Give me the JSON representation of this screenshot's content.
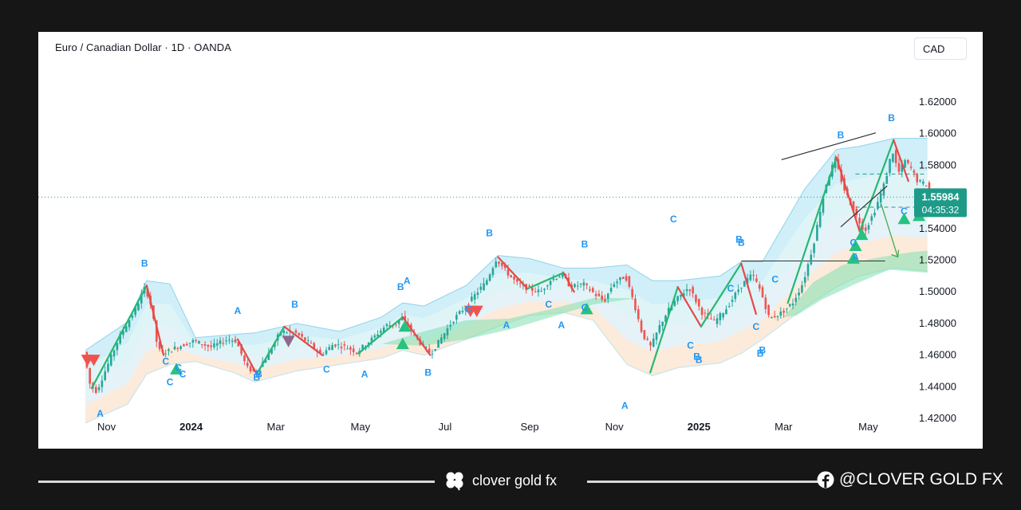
{
  "header": {
    "title": "Euro / Canadian Dollar · 1D · OANDA",
    "currency_button": "CAD"
  },
  "price_label": {
    "price": "1.55984",
    "countdown": "04:35:32"
  },
  "footer": {
    "brand": "clover gold fx",
    "social": "@CLOVER GOLD FX"
  },
  "colors": {
    "up": "#26a69a",
    "down": "#ef5350",
    "pattern_label": "#2196f3",
    "accent": "#1e9a88"
  },
  "chart_data": {
    "type": "candlestick",
    "symbol": "Euro / Canadian Dollar",
    "timeframe": "1D",
    "source": "OANDA",
    "ylim": [
      1.41,
      1.63
    ],
    "y_ticks": [
      "1.62000",
      "1.60000",
      "1.58000",
      "1.54000",
      "1.52000",
      "1.50000",
      "1.48000",
      "1.46000",
      "1.44000",
      "1.42000"
    ],
    "x_ticks": [
      "Nov",
      "2024",
      "Mar",
      "May",
      "Jul",
      "Sep",
      "Nov",
      "2025",
      "Mar",
      "May"
    ],
    "x_tick_positions": [
      0.5,
      2.5,
      4.5,
      6.5,
      8.5,
      10.5,
      12.5,
      14.5,
      16.5,
      18.5
    ],
    "last_price": 1.55984,
    "horizontal_lines": [
      {
        "y": 1.5195,
        "x_from": 15.5,
        "x_to": 18.9,
        "style": "solid"
      },
      {
        "y": 1.5745,
        "x_from": 18.2,
        "x_to": 19.9,
        "style": "dashed"
      },
      {
        "y": 1.5535,
        "x_from": 18.2,
        "x_to": 19.9,
        "style": "dashed"
      }
    ],
    "trendlines": [
      {
        "from": [
          16.45,
          1.5835
        ],
        "to": [
          18.68,
          1.6005
        ]
      },
      {
        "from": [
          17.85,
          1.541
        ],
        "to": [
          18.95,
          1.567
        ]
      }
    ],
    "projection_arrow": {
      "from": [
        18.8,
        1.556
      ],
      "to": [
        19.2,
        1.522
      ]
    },
    "price_path": [
      [
        0.0,
        1.462
      ],
      [
        0.15,
        1.441
      ],
      [
        0.3,
        1.437
      ],
      [
        0.55,
        1.453
      ],
      [
        0.85,
        1.472
      ],
      [
        1.2,
        1.488
      ],
      [
        1.45,
        1.503
      ],
      [
        1.6,
        1.49
      ],
      [
        1.75,
        1.463
      ],
      [
        1.95,
        1.462
      ],
      [
        2.2,
        1.465
      ],
      [
        2.6,
        1.469
      ],
      [
        3.0,
        1.465
      ],
      [
        3.4,
        1.47
      ],
      [
        3.6,
        1.469
      ],
      [
        3.85,
        1.452
      ],
      [
        4.05,
        1.449
      ],
      [
        4.35,
        1.46
      ],
      [
        4.65,
        1.475
      ],
      [
        5.0,
        1.474
      ],
      [
        5.35,
        1.467
      ],
      [
        5.6,
        1.46
      ],
      [
        5.9,
        1.467
      ],
      [
        6.2,
        1.465
      ],
      [
        6.45,
        1.462
      ],
      [
        6.8,
        1.47
      ],
      [
        7.15,
        1.479
      ],
      [
        7.35,
        1.479
      ],
      [
        7.5,
        1.484
      ],
      [
        7.75,
        1.475
      ],
      [
        8.0,
        1.466
      ],
      [
        8.2,
        1.461
      ],
      [
        8.5,
        1.473
      ],
      [
        8.75,
        1.483
      ],
      [
        9.0,
        1.49
      ],
      [
        9.3,
        1.5
      ],
      [
        9.5,
        1.506
      ],
      [
        9.75,
        1.521
      ],
      [
        10.0,
        1.512
      ],
      [
        10.25,
        1.505
      ],
      [
        10.5,
        1.502
      ],
      [
        10.8,
        1.5
      ],
      [
        11.0,
        1.507
      ],
      [
        11.3,
        1.511
      ],
      [
        11.5,
        1.503
      ],
      [
        11.8,
        1.505
      ],
      [
        12.1,
        1.498
      ],
      [
        12.3,
        1.494
      ],
      [
        12.5,
        1.505
      ],
      [
        12.8,
        1.51
      ],
      [
        13.0,
        1.493
      ],
      [
        13.2,
        1.473
      ],
      [
        13.4,
        1.465
      ],
      [
        13.6,
        1.478
      ],
      [
        13.8,
        1.488
      ],
      [
        14.0,
        1.495
      ],
      [
        14.3,
        1.503
      ],
      [
        14.6,
        1.487
      ],
      [
        14.9,
        1.481
      ],
      [
        15.2,
        1.49
      ],
      [
        15.5,
        1.503
      ],
      [
        15.8,
        1.511
      ],
      [
        16.0,
        1.5
      ],
      [
        16.2,
        1.483
      ],
      [
        16.5,
        1.487
      ],
      [
        16.75,
        1.493
      ],
      [
        17.0,
        1.506
      ],
      [
        17.25,
        1.531
      ],
      [
        17.5,
        1.565
      ],
      [
        17.75,
        1.584
      ],
      [
        17.95,
        1.566
      ],
      [
        18.2,
        1.551
      ],
      [
        18.45,
        1.538
      ],
      [
        18.7,
        1.552
      ],
      [
        18.95,
        1.571
      ],
      [
        19.1,
        1.59
      ],
      [
        19.25,
        1.575
      ],
      [
        19.4,
        1.583
      ],
      [
        19.55,
        1.578
      ],
      [
        19.7,
        1.57
      ],
      [
        19.9,
        1.568
      ],
      [
        20.1,
        1.558
      ]
    ],
    "zigzag": [
      {
        "from": [
          0.15,
          1.439
        ],
        "to": [
          1.45,
          1.504
        ],
        "dir": "up"
      },
      {
        "from": [
          1.45,
          1.504
        ],
        "to": [
          1.85,
          1.46
        ],
        "dir": "down"
      },
      {
        "from": [
          3.6,
          1.47
        ],
        "to": [
          4.05,
          1.448
        ],
        "dir": "down"
      },
      {
        "from": [
          4.05,
          1.448
        ],
        "to": [
          4.7,
          1.478
        ],
        "dir": "up"
      },
      {
        "from": [
          4.7,
          1.478
        ],
        "to": [
          5.6,
          1.46
        ],
        "dir": "down"
      },
      {
        "from": [
          6.45,
          1.461
        ],
        "to": [
          7.5,
          1.484
        ],
        "dir": "up"
      },
      {
        "from": [
          7.5,
          1.484
        ],
        "to": [
          8.15,
          1.46
        ],
        "dir": "down"
      },
      {
        "from": [
          9.75,
          1.522
        ],
        "to": [
          10.45,
          1.502
        ],
        "dir": "down"
      },
      {
        "from": [
          10.45,
          1.502
        ],
        "to": [
          11.3,
          1.512
        ],
        "dir": "up"
      },
      {
        "from": [
          11.3,
          1.512
        ],
        "to": [
          11.55,
          1.5
        ],
        "dir": "down"
      },
      {
        "from": [
          13.35,
          1.449
        ],
        "to": [
          14.0,
          1.503
        ],
        "dir": "up"
      },
      {
        "from": [
          14.0,
          1.503
        ],
        "to": [
          14.55,
          1.478
        ],
        "dir": "down"
      },
      {
        "from": [
          14.55,
          1.478
        ],
        "to": [
          15.5,
          1.518
        ],
        "dir": "up"
      },
      {
        "from": [
          15.5,
          1.518
        ],
        "to": [
          15.85,
          1.486
        ],
        "dir": "down"
      },
      {
        "from": [
          16.6,
          1.493
        ],
        "to": [
          17.75,
          1.585
        ],
        "dir": "up"
      },
      {
        "from": [
          17.75,
          1.585
        ],
        "to": [
          18.3,
          1.538
        ],
        "dir": "down"
      },
      {
        "from": [
          18.3,
          1.538
        ],
        "to": [
          19.1,
          1.596
        ],
        "dir": "up"
      },
      {
        "from": [
          19.1,
          1.596
        ],
        "to": [
          19.45,
          1.57
        ],
        "dir": "down"
      }
    ],
    "envelope": {
      "x": [
        0.0,
        1.0,
        1.45,
        2.0,
        2.6,
        3.5,
        4.0,
        5.0,
        6.0,
        7.0,
        7.5,
        8.0,
        9.0,
        9.75,
        10.5,
        11.3,
        12.0,
        12.8,
        13.4,
        14.0,
        15.0,
        15.5,
        16.0,
        17.0,
        17.75,
        18.3,
        19.1,
        19.9
      ],
      "upper": [
        1.463,
        1.481,
        1.507,
        1.505,
        1.471,
        1.473,
        1.474,
        1.48,
        1.475,
        1.484,
        1.493,
        1.491,
        1.504,
        1.523,
        1.521,
        1.515,
        1.515,
        1.517,
        1.507,
        1.507,
        1.51,
        1.519,
        1.519,
        1.565,
        1.59,
        1.592,
        1.597,
        1.597
      ],
      "lower": [
        1.417,
        1.429,
        1.448,
        1.454,
        1.456,
        1.449,
        1.443,
        1.45,
        1.454,
        1.458,
        1.463,
        1.46,
        1.47,
        1.478,
        1.485,
        1.487,
        1.482,
        1.454,
        1.447,
        1.452,
        1.455,
        1.461,
        1.47,
        1.49,
        1.503,
        1.51,
        1.515,
        1.513
      ]
    },
    "green_zones": [
      [
        [
          7.0,
          1.467
        ],
        [
          8.0,
          1.475
        ],
        [
          9.0,
          1.482
        ],
        [
          10.0,
          1.483
        ],
        [
          11.0,
          1.489
        ],
        [
          12.0,
          1.496
        ],
        [
          13.0,
          1.496
        ],
        [
          12.0,
          1.492
        ],
        [
          11.0,
          1.484
        ],
        [
          10.0,
          1.476
        ],
        [
          9.0,
          1.47
        ],
        [
          8.0,
          1.466
        ]
      ],
      [
        [
          16.5,
          1.484
        ],
        [
          17.2,
          1.506
        ],
        [
          17.9,
          1.517
        ],
        [
          18.6,
          1.521
        ],
        [
          19.5,
          1.525
        ],
        [
          19.9,
          1.526
        ],
        [
          19.9,
          1.512
        ],
        [
          19.0,
          1.514
        ],
        [
          18.2,
          1.505
        ],
        [
          17.4,
          1.495
        ],
        [
          16.8,
          1.485
        ]
      ]
    ],
    "markers": [
      {
        "x": 0.05,
        "y": 1.457,
        "dir": "down",
        "color": "#ef5350"
      },
      {
        "x": 0.2,
        "y": 1.457,
        "dir": "down",
        "color": "#ef5350"
      },
      {
        "x": 2.15,
        "y": 1.451,
        "dir": "up",
        "color": "#26c281"
      },
      {
        "x": 4.8,
        "y": 1.469,
        "dir": "down",
        "color": "#8c6a8c"
      },
      {
        "x": 7.55,
        "y": 1.478,
        "dir": "up",
        "color": "#26c281"
      },
      {
        "x": 7.5,
        "y": 1.467,
        "dir": "up",
        "color": "#26c281"
      },
      {
        "x": 9.1,
        "y": 1.488,
        "dir": "down",
        "color": "#ef5350"
      },
      {
        "x": 9.25,
        "y": 1.488,
        "dir": "down",
        "color": "#ef5350"
      },
      {
        "x": 11.85,
        "y": 1.489,
        "dir": "up",
        "color": "#26c281"
      },
      {
        "x": 18.2,
        "y": 1.529,
        "dir": "up",
        "color": "#26c281"
      },
      {
        "x": 18.35,
        "y": 1.536,
        "dir": "up",
        "color": "#26c281"
      },
      {
        "x": 18.15,
        "y": 1.521,
        "dir": "up",
        "color": "#26c281"
      },
      {
        "x": 19.35,
        "y": 1.546,
        "dir": "up",
        "color": "#26c281"
      },
      {
        "x": 19.7,
        "y": 1.548,
        "dir": "up",
        "color": "#26c281"
      }
    ],
    "pattern_labels": [
      {
        "t": "A",
        "x": 0.35,
        "y": 1.421
      },
      {
        "t": "B",
        "x": 1.4,
        "y": 1.516
      },
      {
        "t": "C",
        "x": 1.9,
        "y": 1.454
      },
      {
        "t": "C",
        "x": 2.0,
        "y": 1.441
      },
      {
        "t": "C",
        "x": 2.2,
        "y": 1.45
      },
      {
        "t": "C",
        "x": 2.3,
        "y": 1.446
      },
      {
        "t": "A",
        "x": 3.6,
        "y": 1.486
      },
      {
        "t": "B",
        "x": 4.1,
        "y": 1.446
      },
      {
        "t": "B",
        "x": 4.05,
        "y": 1.444
      },
      {
        "t": "B",
        "x": 4.95,
        "y": 1.49
      },
      {
        "t": "C",
        "x": 5.7,
        "y": 1.449
      },
      {
        "t": "A",
        "x": 6.6,
        "y": 1.446
      },
      {
        "t": "B",
        "x": 7.45,
        "y": 1.501
      },
      {
        "t": "A",
        "x": 7.6,
        "y": 1.505
      },
      {
        "t": "B",
        "x": 8.1,
        "y": 1.447
      },
      {
        "t": "B",
        "x": 9.55,
        "y": 1.535
      },
      {
        "t": "C",
        "x": 9.05,
        "y": 1.487
      },
      {
        "t": "A",
        "x": 9.95,
        "y": 1.477
      },
      {
        "t": "C",
        "x": 10.95,
        "y": 1.49
      },
      {
        "t": "A",
        "x": 11.25,
        "y": 1.477
      },
      {
        "t": "C",
        "x": 11.8,
        "y": 1.488
      },
      {
        "t": "B",
        "x": 11.8,
        "y": 1.528
      },
      {
        "t": "A",
        "x": 12.75,
        "y": 1.426
      },
      {
        "t": "C",
        "x": 13.9,
        "y": 1.544
      },
      {
        "t": "C",
        "x": 14.3,
        "y": 1.464
      },
      {
        "t": "B",
        "x": 14.5,
        "y": 1.455
      },
      {
        "t": "B",
        "x": 14.45,
        "y": 1.457
      },
      {
        "t": "C",
        "x": 15.25,
        "y": 1.5
      },
      {
        "t": "B",
        "x": 15.5,
        "y": 1.529
      },
      {
        "t": "B",
        "x": 15.45,
        "y": 1.531
      },
      {
        "t": "C",
        "x": 15.85,
        "y": 1.476
      },
      {
        "t": "B",
        "x": 16.0,
        "y": 1.461
      },
      {
        "t": "B",
        "x": 15.95,
        "y": 1.459
      },
      {
        "t": "C",
        "x": 16.3,
        "y": 1.506
      },
      {
        "t": "B",
        "x": 17.85,
        "y": 1.597
      },
      {
        "t": "C",
        "x": 18.15,
        "y": 1.529
      },
      {
        "t": "A",
        "x": 18.2,
        "y": 1.52
      },
      {
        "t": "B",
        "x": 19.05,
        "y": 1.608
      },
      {
        "t": "C",
        "x": 19.35,
        "y": 1.549
      }
    ]
  }
}
